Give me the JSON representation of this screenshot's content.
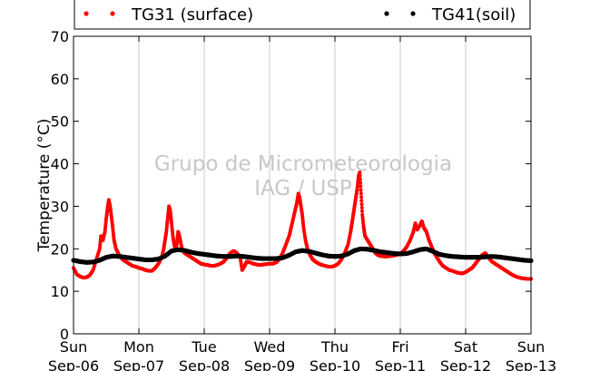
{
  "chart_data": {
    "type": "scatter",
    "title": "",
    "xlabel": "",
    "ylabel": "Temperature (°C)",
    "ylim": [
      0,
      70
    ],
    "yticks": [
      0,
      10,
      20,
      30,
      40,
      50,
      60,
      70
    ],
    "xlim_days": [
      0,
      7
    ],
    "x_ticks": [
      {
        "line1": "Sun",
        "line2": "Sep-06"
      },
      {
        "line1": "Mon",
        "line2": "Sep-07"
      },
      {
        "line1": "Tue",
        "line2": "Sep-08"
      },
      {
        "line1": "Wed",
        "line2": "Sep-09"
      },
      {
        "line1": "Thu",
        "line2": "Sep-10"
      },
      {
        "line1": "Fri",
        "line2": "Sep-11"
      },
      {
        "line1": "Sat",
        "line2": "Sep-12"
      },
      {
        "line1": "Sun",
        "line2": "Sep-13"
      }
    ],
    "grid": "vertical",
    "legend_position": "top",
    "watermark": [
      "Grupo de Micrometeorologia",
      "IAG / USP"
    ],
    "series": [
      {
        "name": "TG31 (surface)",
        "color": "#ff0000",
        "points": [
          [
            0.0,
            15.5
          ],
          [
            0.05,
            14.0
          ],
          [
            0.1,
            13.5
          ],
          [
            0.15,
            13.2
          ],
          [
            0.2,
            13.3
          ],
          [
            0.25,
            13.8
          ],
          [
            0.3,
            15.0
          ],
          [
            0.35,
            17.5
          ],
          [
            0.4,
            20.0
          ],
          [
            0.42,
            23.0
          ],
          [
            0.45,
            22.0
          ],
          [
            0.48,
            24.0
          ],
          [
            0.5,
            27.0
          ],
          [
            0.52,
            29.5
          ],
          [
            0.54,
            31.5
          ],
          [
            0.56,
            30.0
          ],
          [
            0.58,
            27.5
          ],
          [
            0.6,
            25.0
          ],
          [
            0.62,
            22.0
          ],
          [
            0.65,
            20.0
          ],
          [
            0.7,
            18.5
          ],
          [
            0.75,
            17.5
          ],
          [
            0.8,
            17.0
          ],
          [
            0.85,
            16.5
          ],
          [
            0.9,
            16.0
          ],
          [
            0.95,
            15.8
          ],
          [
            1.0,
            15.5
          ],
          [
            1.05,
            15.3
          ],
          [
            1.1,
            15.0
          ],
          [
            1.15,
            14.8
          ],
          [
            1.2,
            14.8
          ],
          [
            1.25,
            15.5
          ],
          [
            1.3,
            16.5
          ],
          [
            1.35,
            18.0
          ],
          [
            1.38,
            20.0
          ],
          [
            1.4,
            22.0
          ],
          [
            1.42,
            24.0
          ],
          [
            1.44,
            27.0
          ],
          [
            1.46,
            30.0
          ],
          [
            1.48,
            29.0
          ],
          [
            1.5,
            26.0
          ],
          [
            1.52,
            23.0
          ],
          [
            1.54,
            21.0
          ],
          [
            1.56,
            20.0
          ],
          [
            1.58,
            21.0
          ],
          [
            1.6,
            24.0
          ],
          [
            1.62,
            23.0
          ],
          [
            1.64,
            21.5
          ],
          [
            1.66,
            20.0
          ],
          [
            1.7,
            19.0
          ],
          [
            1.75,
            18.5
          ],
          [
            1.8,
            18.0
          ],
          [
            1.85,
            17.5
          ],
          [
            1.9,
            17.0
          ],
          [
            1.95,
            16.5
          ],
          [
            2.0,
            16.3
          ],
          [
            2.05,
            16.2
          ],
          [
            2.1,
            16.0
          ],
          [
            2.15,
            16.0
          ],
          [
            2.2,
            16.2
          ],
          [
            2.25,
            16.5
          ],
          [
            2.3,
            17.0
          ],
          [
            2.35,
            18.0
          ],
          [
            2.4,
            19.0
          ],
          [
            2.45,
            19.5
          ],
          [
            2.5,
            19.0
          ],
          [
            2.55,
            18.0
          ],
          [
            2.58,
            15.0
          ],
          [
            2.62,
            16.0
          ],
          [
            2.65,
            17.0
          ],
          [
            2.7,
            16.8
          ],
          [
            2.75,
            16.5
          ],
          [
            2.8,
            16.3
          ],
          [
            2.85,
            16.2
          ],
          [
            2.9,
            16.3
          ],
          [
            2.95,
            16.4
          ],
          [
            3.0,
            16.5
          ],
          [
            3.05,
            16.5
          ],
          [
            3.1,
            16.8
          ],
          [
            3.15,
            17.5
          ],
          [
            3.2,
            19.0
          ],
          [
            3.25,
            21.0
          ],
          [
            3.3,
            23.0
          ],
          [
            3.33,
            25.0
          ],
          [
            3.36,
            27.0
          ],
          [
            3.39,
            29.0
          ],
          [
            3.42,
            31.0
          ],
          [
            3.44,
            33.0
          ],
          [
            3.46,
            32.0
          ],
          [
            3.48,
            30.0
          ],
          [
            3.5,
            28.0
          ],
          [
            3.52,
            25.0
          ],
          [
            3.55,
            22.0
          ],
          [
            3.58,
            20.0
          ],
          [
            3.62,
            18.5
          ],
          [
            3.66,
            17.5
          ],
          [
            3.7,
            17.0
          ],
          [
            3.75,
            16.5
          ],
          [
            3.8,
            16.2
          ],
          [
            3.85,
            16.0
          ],
          [
            3.9,
            15.8
          ],
          [
            3.95,
            15.8
          ],
          [
            4.0,
            16.0
          ],
          [
            4.05,
            16.5
          ],
          [
            4.1,
            17.5
          ],
          [
            4.15,
            19.0
          ],
          [
            4.2,
            21.0
          ],
          [
            4.24,
            24.0
          ],
          [
            4.26,
            26.0
          ],
          [
            4.28,
            28.0
          ],
          [
            4.3,
            30.0
          ],
          [
            4.32,
            32.0
          ],
          [
            4.34,
            34.0
          ],
          [
            4.36,
            37.0
          ],
          [
            4.38,
            38.0
          ],
          [
            4.4,
            33.0
          ],
          [
            4.42,
            28.0
          ],
          [
            4.44,
            25.0
          ],
          [
            4.46,
            23.0
          ],
          [
            4.5,
            22.0
          ],
          [
            4.54,
            21.0
          ],
          [
            4.58,
            20.0
          ],
          [
            4.62,
            19.0
          ],
          [
            4.66,
            18.5
          ],
          [
            4.7,
            18.3
          ],
          [
            4.75,
            18.2
          ],
          [
            4.8,
            18.2
          ],
          [
            4.85,
            18.3
          ],
          [
            4.9,
            18.4
          ],
          [
            4.95,
            18.6
          ],
          [
            5.0,
            18.8
          ],
          [
            5.05,
            19.5
          ],
          [
            5.1,
            20.5
          ],
          [
            5.15,
            22.0
          ],
          [
            5.2,
            24.0
          ],
          [
            5.23,
            26.0
          ],
          [
            5.26,
            24.5
          ],
          [
            5.3,
            25.5
          ],
          [
            5.33,
            26.5
          ],
          [
            5.36,
            25.0
          ],
          [
            5.4,
            24.0
          ],
          [
            5.44,
            22.0
          ],
          [
            5.48,
            20.5
          ],
          [
            5.52,
            19.0
          ],
          [
            5.56,
            18.0
          ],
          [
            5.6,
            17.0
          ],
          [
            5.65,
            16.0
          ],
          [
            5.7,
            15.5
          ],
          [
            5.75,
            15.0
          ],
          [
            5.8,
            14.8
          ],
          [
            5.85,
            14.5
          ],
          [
            5.9,
            14.3
          ],
          [
            5.95,
            14.2
          ],
          [
            6.0,
            14.5
          ],
          [
            6.05,
            15.0
          ],
          [
            6.1,
            15.5
          ],
          [
            6.15,
            16.5
          ],
          [
            6.2,
            17.5
          ],
          [
            6.25,
            18.5
          ],
          [
            6.3,
            19.0
          ],
          [
            6.35,
            18.0
          ],
          [
            6.4,
            17.0
          ],
          [
            6.45,
            16.5
          ],
          [
            6.5,
            16.0
          ],
          [
            6.55,
            15.5
          ],
          [
            6.6,
            15.0
          ],
          [
            6.65,
            14.5
          ],
          [
            6.7,
            14.0
          ],
          [
            6.75,
            13.6
          ],
          [
            6.8,
            13.3
          ],
          [
            6.85,
            13.1
          ],
          [
            6.9,
            13.0
          ],
          [
            6.95,
            12.9
          ],
          [
            7.0,
            12.9
          ]
        ]
      },
      {
        "name": "TG41(soil)",
        "color": "#000000",
        "points": [
          [
            0.0,
            17.3
          ],
          [
            0.1,
            17.0
          ],
          [
            0.2,
            16.8
          ],
          [
            0.3,
            16.9
          ],
          [
            0.4,
            17.3
          ],
          [
            0.5,
            18.0
          ],
          [
            0.6,
            18.3
          ],
          [
            0.7,
            18.2
          ],
          [
            0.8,
            18.0
          ],
          [
            0.9,
            17.8
          ],
          [
            1.0,
            17.6
          ],
          [
            1.1,
            17.4
          ],
          [
            1.2,
            17.4
          ],
          [
            1.3,
            17.6
          ],
          [
            1.4,
            18.3
          ],
          [
            1.5,
            19.5
          ],
          [
            1.6,
            19.8
          ],
          [
            1.7,
            19.6
          ],
          [
            1.8,
            19.2
          ],
          [
            1.9,
            18.9
          ],
          [
            2.0,
            18.7
          ],
          [
            2.1,
            18.5
          ],
          [
            2.2,
            18.3
          ],
          [
            2.3,
            18.2
          ],
          [
            2.4,
            18.2
          ],
          [
            2.5,
            18.3
          ],
          [
            2.6,
            18.2
          ],
          [
            2.7,
            18.0
          ],
          [
            2.8,
            17.8
          ],
          [
            2.9,
            17.7
          ],
          [
            3.0,
            17.7
          ],
          [
            3.1,
            17.7
          ],
          [
            3.2,
            17.9
          ],
          [
            3.3,
            18.5
          ],
          [
            3.4,
            19.3
          ],
          [
            3.5,
            19.6
          ],
          [
            3.6,
            19.4
          ],
          [
            3.7,
            19.0
          ],
          [
            3.8,
            18.6
          ],
          [
            3.9,
            18.3
          ],
          [
            4.0,
            18.2
          ],
          [
            4.1,
            18.3
          ],
          [
            4.2,
            18.8
          ],
          [
            4.3,
            19.6
          ],
          [
            4.4,
            20.0
          ],
          [
            4.5,
            19.9
          ],
          [
            4.6,
            19.6
          ],
          [
            4.7,
            19.3
          ],
          [
            4.8,
            19.1
          ],
          [
            4.9,
            18.9
          ],
          [
            5.0,
            18.8
          ],
          [
            5.1,
            18.9
          ],
          [
            5.2,
            19.3
          ],
          [
            5.3,
            19.8
          ],
          [
            5.4,
            20.0
          ],
          [
            5.5,
            19.4
          ],
          [
            5.6,
            18.7
          ],
          [
            5.7,
            18.4
          ],
          [
            5.8,
            18.2
          ],
          [
            5.9,
            18.1
          ],
          [
            6.0,
            18.0
          ],
          [
            6.1,
            18.0
          ],
          [
            6.2,
            18.0
          ],
          [
            6.3,
            18.1
          ],
          [
            6.4,
            18.2
          ],
          [
            6.5,
            18.1
          ],
          [
            6.6,
            17.9
          ],
          [
            6.7,
            17.7
          ],
          [
            6.8,
            17.5
          ],
          [
            6.9,
            17.3
          ],
          [
            7.0,
            17.2
          ]
        ]
      }
    ]
  }
}
